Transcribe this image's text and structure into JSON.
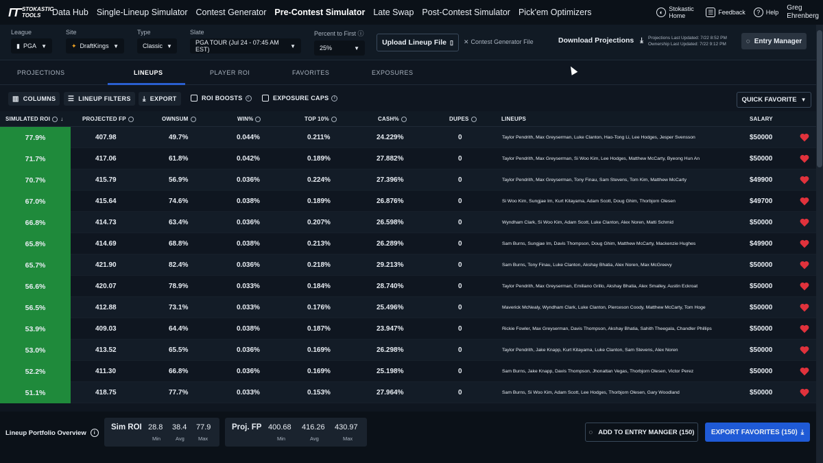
{
  "nav": {
    "logo_line1": "STOKASTIC",
    "logo_line2": "TOOLS",
    "links": [
      "Data Hub",
      "Single-Lineup Simulator",
      "Contest Generator",
      "Pre-Contest Simulator",
      "Late Swap",
      "Post-Contest Simulator",
      "Pick'em Optimizers"
    ],
    "active_link": "Pre-Contest Simulator",
    "stokastic_home": "Stokastic Home",
    "feedback": "Feedback",
    "help": "Help",
    "user_first": "Greg",
    "user_last": "Ehrenberg"
  },
  "filters": {
    "league_label": "League",
    "league_value": "PGA",
    "site_label": "Site",
    "site_value": "DraftKings",
    "type_label": "Type",
    "type_value": "Classic",
    "slate_label": "Slate",
    "slate_value": "PGA TOUR (Jul 24 - 07:45 AM EST)",
    "pct_label": "Percent to First",
    "pct_value": "25%",
    "upload_label": "Upload Lineup File",
    "cg_file": "Contest Generator File",
    "download_label": "Download Projections",
    "proj_updated": "Projections Last Updated: 7/22 8:52 PM",
    "own_updated": "Ownership Last Updated: 7/22 9:12 PM",
    "entry_manager": "Entry Manager"
  },
  "tabs": [
    "PROJECTIONS",
    "LINEUPS",
    "PLAYER ROI",
    "FAVORITES",
    "EXPOSURES"
  ],
  "active_tab": "LINEUPS",
  "toolbar": {
    "columns": "COLUMNS",
    "lineup_filters": "LINEUP FILTERS",
    "export": "EXPORT",
    "roi_boosts": "ROI BOOSTS",
    "exposure_caps": "EXPOSURE CAPS",
    "quick_favorite": "QUICK FAVORITE"
  },
  "table": {
    "headers": {
      "roi": "SIMULATED ROI",
      "fp": "PROJECTED FP",
      "own": "OWNSUM",
      "win": "WIN%",
      "top": "TOP 10%",
      "cash": "CASH%",
      "dupes": "DUPES",
      "lineups": "LINEUPS",
      "salary": "SALARY"
    },
    "rows": [
      {
        "roi": "77.9%",
        "fp": "407.98",
        "own": "49.7%",
        "win": "0.044%",
        "top": "0.211%",
        "cash": "24.229%",
        "dupes": "0",
        "lineup": "Taylor Pendrith, Max Greyserman, Luke Clanton, Hao-Tong Li, Lee Hodges, Jesper Svensson",
        "salary": "$50000"
      },
      {
        "roi": "71.7%",
        "fp": "417.06",
        "own": "61.8%",
        "win": "0.042%",
        "top": "0.189%",
        "cash": "27.882%",
        "dupes": "0",
        "lineup": "Taylor Pendrith, Max Greyserman, Si Woo Kim, Lee Hodges, Matthew McCarty, Byeong Hun An",
        "salary": "$50000"
      },
      {
        "roi": "70.7%",
        "fp": "415.79",
        "own": "56.9%",
        "win": "0.036%",
        "top": "0.224%",
        "cash": "27.396%",
        "dupes": "0",
        "lineup": "Taylor Pendrith, Max Greyserman, Tony Finau, Sam Stevens, Tom Kim, Matthew McCarty",
        "salary": "$49900"
      },
      {
        "roi": "67.0%",
        "fp": "415.64",
        "own": "74.6%",
        "win": "0.038%",
        "top": "0.189%",
        "cash": "26.876%",
        "dupes": "0",
        "lineup": "Si Woo Kim, Sungjae Im, Kurt Kitayama, Adam Scott, Doug Ghim, Thorbjorn Olesen",
        "salary": "$49700"
      },
      {
        "roi": "66.8%",
        "fp": "414.73",
        "own": "63.4%",
        "win": "0.036%",
        "top": "0.207%",
        "cash": "26.598%",
        "dupes": "0",
        "lineup": "Wyndham Clark, Si Woo Kim, Adam Scott, Luke Clanton, Alex Noren, Matti Schmid",
        "salary": "$50000"
      },
      {
        "roi": "65.8%",
        "fp": "414.69",
        "own": "68.8%",
        "win": "0.038%",
        "top": "0.213%",
        "cash": "26.289%",
        "dupes": "0",
        "lineup": "Sam Burns, Sungjae Im, Davis Thompson, Doug Ghim, Matthew McCarty, Mackenzie Hughes",
        "salary": "$49900"
      },
      {
        "roi": "65.7%",
        "fp": "421.90",
        "own": "82.4%",
        "win": "0.036%",
        "top": "0.218%",
        "cash": "29.213%",
        "dupes": "0",
        "lineup": "Sam Burns, Tony Finau, Luke Clanton, Akshay Bhatia, Alex Noren, Max McGreevy",
        "salary": "$50000"
      },
      {
        "roi": "56.6%",
        "fp": "420.07",
        "own": "78.9%",
        "win": "0.033%",
        "top": "0.184%",
        "cash": "28.740%",
        "dupes": "0",
        "lineup": "Taylor Pendrith, Max Greyserman, Emiliano Grillo, Akshay Bhatia, Alex Smalley, Austin Eckroat",
        "salary": "$50000"
      },
      {
        "roi": "56.5%",
        "fp": "412.88",
        "own": "73.1%",
        "win": "0.033%",
        "top": "0.176%",
        "cash": "25.496%",
        "dupes": "0",
        "lineup": "Maverick McNealy, Wyndham Clark, Luke Clanton, Pierceson Coody, Matthew McCarty, Tom Hoge",
        "salary": "$50000"
      },
      {
        "roi": "53.9%",
        "fp": "409.03",
        "own": "64.4%",
        "win": "0.038%",
        "top": "0.187%",
        "cash": "23.947%",
        "dupes": "0",
        "lineup": "Rickie Fowler, Max Greyserman, Davis Thompson, Akshay Bhatia, Sahith Theegala, Chandler Phillips",
        "salary": "$50000"
      },
      {
        "roi": "53.0%",
        "fp": "413.52",
        "own": "65.5%",
        "win": "0.036%",
        "top": "0.169%",
        "cash": "26.298%",
        "dupes": "0",
        "lineup": "Taylor Pendrith, Jake Knapp, Kurt Kitayama, Luke Clanton, Sam Stevens, Alex Noren",
        "salary": "$50000"
      },
      {
        "roi": "52.2%",
        "fp": "411.30",
        "own": "66.8%",
        "win": "0.036%",
        "top": "0.169%",
        "cash": "25.198%",
        "dupes": "0",
        "lineup": "Sam Burns, Jake Knapp, Davis Thompson, Jhonattan Vegas, Thorbjorn Olesen, Victor Perez",
        "salary": "$50000"
      },
      {
        "roi": "51.1%",
        "fp": "418.75",
        "own": "77.7%",
        "win": "0.033%",
        "top": "0.153%",
        "cash": "27.964%",
        "dupes": "0",
        "lineup": "Sam Burns, Si Woo Kim, Adam Scott, Lee Hodges, Thorbjorn Olesen, Gary Woodland",
        "salary": "$50000"
      }
    ]
  },
  "footer": {
    "portfolio_label": "Lineup Portfolio Overview",
    "sim_roi_label": "Sim ROI",
    "sim_roi_min": "28.8",
    "sim_roi_avg": "38.4",
    "sim_roi_max": "77.9",
    "proj_fp_label": "Proj. FP",
    "proj_fp_min": "400.68",
    "proj_fp_avg": "416.26",
    "proj_fp_max": "430.97",
    "min_label": "Min",
    "avg_label": "Avg",
    "max_label": "Max",
    "add_entry": "ADD TO ENTRY MANGER (150)",
    "export_fav": "EXPORT FAVORITES (150)"
  },
  "colors": {
    "roi_green": "#1f8a3b",
    "heart_red": "#e0323c",
    "accent_blue": "#1f5ad6"
  }
}
